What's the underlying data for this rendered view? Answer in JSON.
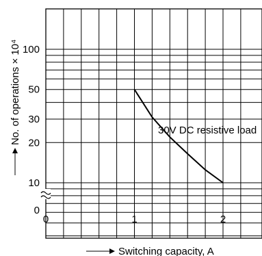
{
  "chart_data": {
    "type": "line",
    "xlabel": "Switching capacity, A",
    "ylabel": "No. of operations × 10⁴",
    "x_ticks": [
      "0",
      "1",
      "2"
    ],
    "y_ticks": [
      "0",
      "10",
      "20",
      "30",
      "50",
      "100"
    ],
    "xlim": [
      0,
      2.4
    ],
    "y_scale": "log",
    "y_axis_break": true,
    "grid": true,
    "series": [
      {
        "name": "30V DC resistive load",
        "x": [
          1.0,
          1.2,
          1.4,
          1.6,
          1.8,
          2.0
        ],
        "y": [
          50,
          31,
          22,
          16.5,
          12.5,
          10
        ]
      }
    ]
  }
}
